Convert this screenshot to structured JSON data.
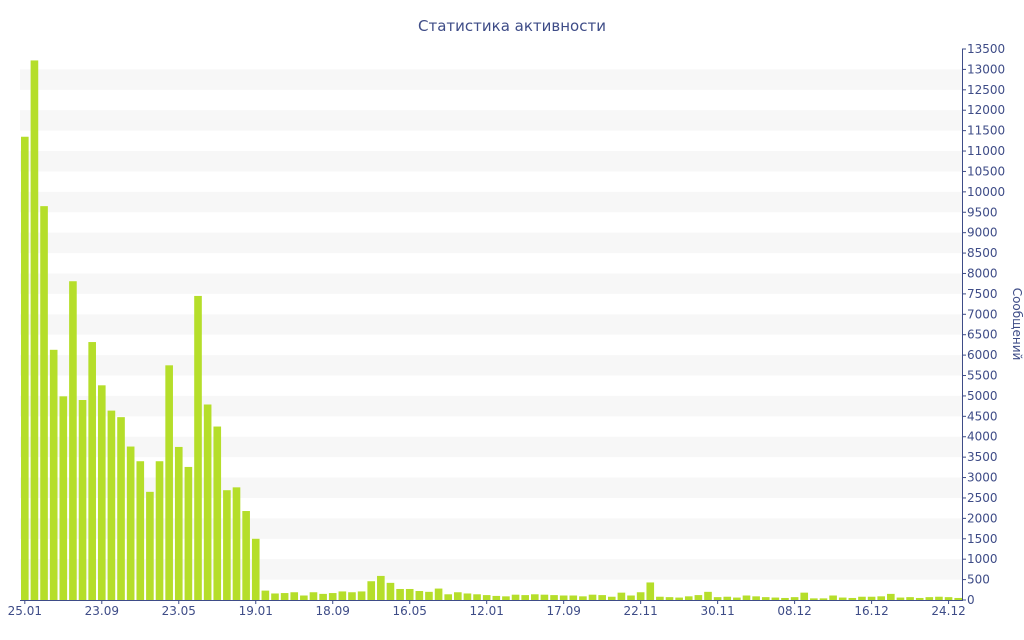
{
  "chart_data": {
    "type": "bar",
    "title": "Статистика активности",
    "ylabel": "Сообщений",
    "xlabel": "",
    "ylim": [
      0,
      13500
    ],
    "y_tick_step": 500,
    "grid": "alternating horizontal bands",
    "bar_color": "#b5de2a",
    "x_tick_labels": [
      "25.01",
      "23.09",
      "23.05",
      "19.01",
      "18.09",
      "16.05",
      "12.01",
      "17.09",
      "22.11",
      "30.11",
      "08.12",
      "16.12",
      "24.12"
    ],
    "x_tick_bar_index": [
      0,
      8,
      16,
      24,
      32,
      40,
      48,
      56,
      64,
      72,
      80,
      88,
      96
    ],
    "values": [
      11350,
      13220,
      9650,
      6130,
      4990,
      7810,
      4900,
      6320,
      5260,
      4640,
      4480,
      3760,
      3400,
      2650,
      3400,
      5750,
      3750,
      3260,
      7450,
      4790,
      4250,
      2690,
      2760,
      2180,
      1500,
      230,
      160,
      170,
      190,
      110,
      190,
      150,
      170,
      210,
      190,
      210,
      460,
      590,
      420,
      270,
      270,
      220,
      200,
      280,
      140,
      190,
      160,
      140,
      120,
      100,
      90,
      130,
      120,
      140,
      130,
      120,
      110,
      110,
      90,
      130,
      120,
      80,
      180,
      110,
      190,
      430,
      80,
      70,
      60,
      90,
      120,
      200,
      70,
      80,
      60,
      110,
      90,
      70,
      60,
      50,
      70,
      180,
      40,
      40,
      110,
      60,
      50,
      80,
      80,
      90,
      150,
      60,
      70,
      50,
      70,
      80,
      70,
      50
    ]
  }
}
